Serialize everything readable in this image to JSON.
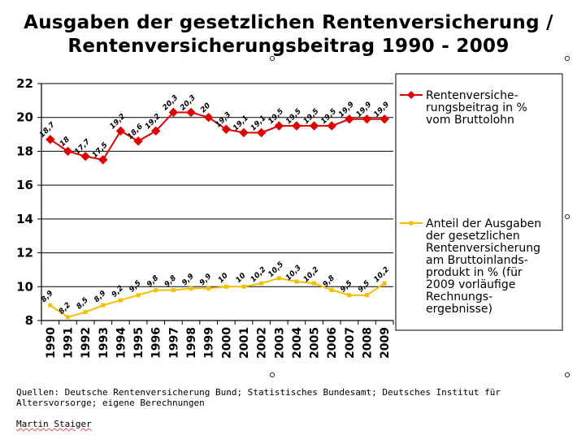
{
  "title_line1": "Ausgaben der gesetzlichen Rentenversicherung /",
  "title_line2": "Rentenversicherungsbeitrag 1990 - 2009",
  "sources": "Quellen: Deutsche Rentenversicherung Bund; Statistisches Bundesamt; Deutsches Institut für Altersvorsorge; eigene Berechnungen",
  "author": "Martin Staiger",
  "chart_data": {
    "type": "line",
    "title": "Ausgaben der gesetzlichen Rentenversicherung / Rentenversicherungsbeitrag 1990 - 2009",
    "xlabel": "",
    "ylabel": "",
    "ylim": [
      8,
      22
    ],
    "yticks": [
      "8",
      "10",
      "12",
      "14",
      "16",
      "18",
      "20",
      "22"
    ],
    "grid": true,
    "legend_position": "right",
    "x": [
      "1990",
      "1991",
      "1992",
      "1993",
      "1994",
      "1995",
      "1996",
      "1997",
      "1998",
      "1999",
      "2000",
      "2001",
      "2002",
      "2003",
      "2004",
      "2005",
      "2006",
      "2007",
      "2008",
      "2009"
    ],
    "series": [
      {
        "name_lines": [
          "Rentenversiche-",
          "rungsbeitrag in %",
          "vom Bruttolohn"
        ],
        "color": "#e00000",
        "marker": "diamond",
        "values": [
          18.7,
          18,
          17.7,
          17.5,
          19.2,
          18.6,
          19.2,
          20.3,
          20.3,
          20,
          19.3,
          19.1,
          19.1,
          19.5,
          19.5,
          19.5,
          19.5,
          19.9,
          19.9,
          19.9
        ],
        "labels": [
          "18,7",
          "18",
          "17,7",
          "17,5",
          "19,2",
          "18,6",
          "19,2",
          "20,3",
          "20,3",
          "20",
          "19,3",
          "19,1",
          "19,1",
          "19,5",
          "19,5",
          "19,5",
          "19,5",
          "19,9",
          "19,9",
          "19,9"
        ]
      },
      {
        "name_lines": [
          "Anteil der Ausgaben",
          "der gesetzlichen",
          "Rentenversicherung",
          "am Bruttoinlands-",
          "produkt in % (für",
          "2009 vorläufige",
          "Rechnungs-",
          "ergebnisse)"
        ],
        "color": "#f0c000",
        "marker": "square",
        "values": [
          8.9,
          8.2,
          8.5,
          8.9,
          9.2,
          9.5,
          9.8,
          9.8,
          9.9,
          9.9,
          10,
          10,
          10.2,
          10.5,
          10.3,
          10.2,
          9.8,
          9.5,
          9.5,
          10.2
        ],
        "labels": [
          "8,9",
          "8,2",
          "8,5",
          "8,9",
          "9,2",
          "9,5",
          "9,8",
          "9,8",
          "9,9",
          "9,9",
          "10",
          "10",
          "10,2",
          "10,5",
          "10,3",
          "10,2",
          "9,8",
          "9,5",
          "9,5",
          "10,2"
        ]
      }
    ]
  }
}
